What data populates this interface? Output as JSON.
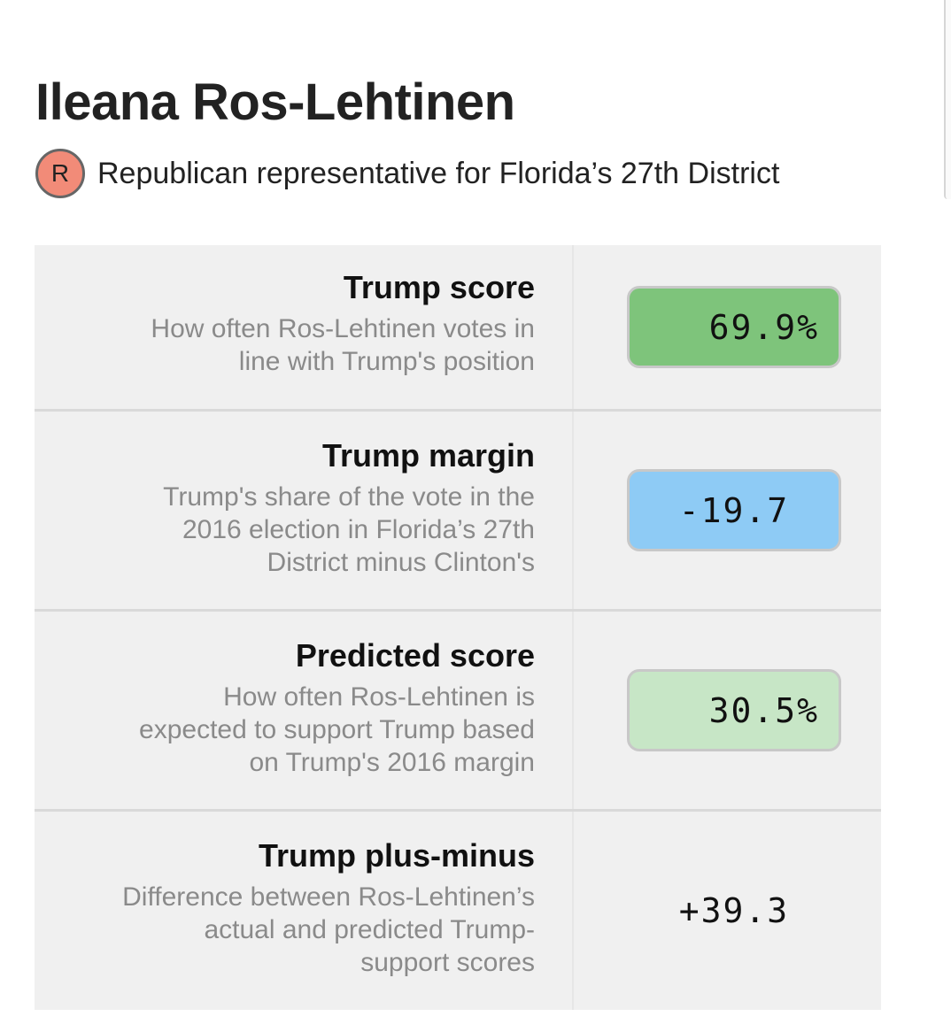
{
  "header": {
    "name": "Ileana Ros-Lehtinen",
    "party_letter": "R",
    "description": "Republican representative for Florida’s 27th District"
  },
  "rows": [
    {
      "title": "Trump score",
      "desc_lines": [
        "How often Ros-Lehtinen votes in",
        "line with Trump's position"
      ],
      "value": "69.9%"
    },
    {
      "title": "Trump margin",
      "desc_lines": [
        "Trump's share of the vote in the",
        "2016 election in Florida’s 27th",
        "District minus Clinton's"
      ],
      "value": "-19.7"
    },
    {
      "title": "Predicted score",
      "desc_lines": [
        "How often Ros-Lehtinen is",
        "expected to support Trump based",
        "on Trump's 2016 margin"
      ],
      "value": "30.5%"
    },
    {
      "title": "Trump plus-minus",
      "desc_lines": [
        "Difference between Ros-Lehtinen’s",
        "actual and predicted Trump-",
        "support scores"
      ],
      "value": "+39.3"
    }
  ],
  "colors": {
    "party_badge": "#f28b78",
    "trump_score_bg": "#7ec47b",
    "trump_margin_bg": "#8ecbf5",
    "predicted_score_bg": "#c7e6c6"
  }
}
